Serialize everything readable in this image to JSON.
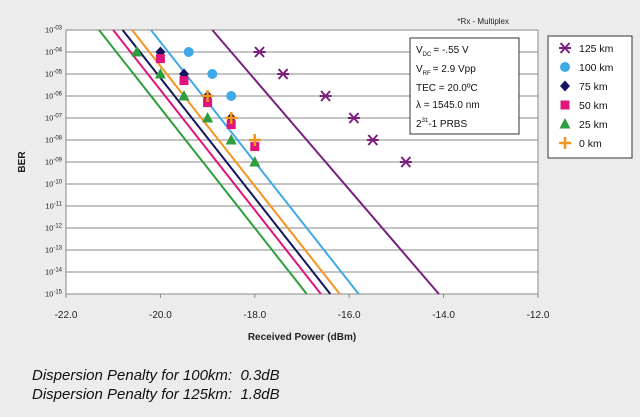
{
  "chart_data": {
    "type": "line",
    "corner_note": "*Rx - Multiplex",
    "xlabel": "Received Power (dBm)",
    "ylabel": "BER",
    "xlim": [
      -22.0,
      -12.0
    ],
    "x_ticks": [
      "-22.0",
      "-20.0",
      "-18.0",
      "-16.0",
      "-14.0",
      "-12.0"
    ],
    "y_scale": "log",
    "y_ticks": [
      "10^-03",
      "10^-04",
      "10^-05",
      "10^-06",
      "10^-07",
      "10^-08",
      "10^-09",
      "10^-10",
      "10^-11",
      "10^-12",
      "10^-13",
      "10^-14",
      "10^-15"
    ],
    "y_tick_base": "10",
    "y_tick_exps": [
      "-03",
      "-04",
      "-05",
      "-06",
      "-07",
      "-08",
      "-09",
      "-10",
      "-11",
      "-12",
      "-13",
      "-14",
      "-15"
    ],
    "grid": true,
    "legend_position": "right",
    "conditions": {
      "vdc": {
        "label": "V",
        "sub": "DC",
        "value": "= -.55 V"
      },
      "vrf": {
        "label": "V",
        "sub": "RF",
        "value": "= 2.9 Vpp"
      },
      "tec": "TEC = 20.0ºC",
      "lambda": "λ    = 1545.0 nm",
      "prbs": {
        "base": "2",
        "sup": "31",
        "rest": "-1  PRBS"
      }
    },
    "series": [
      {
        "name": "125 km",
        "marker": "star",
        "color": "#7b1f7f",
        "x": [
          -17.9,
          -17.4,
          -16.5,
          -15.9,
          -15.5,
          -14.8
        ],
        "y": [
          -4,
          -5,
          -6,
          -7,
          -8,
          -9
        ],
        "fit": {
          "x_start": -18.9,
          "y_start": -3,
          "x_end": -14.1,
          "y_end": -15
        }
      },
      {
        "name": "100 km",
        "marker": "circle",
        "color": "#3fa9e8",
        "x": [
          -19.4,
          -18.9,
          -18.5
        ],
        "y": [
          -4,
          -5,
          -6
        ],
        "fit": {
          "x_start": -20.2,
          "y_start": -3,
          "x_end": -15.8,
          "y_end": -15
        }
      },
      {
        "name": "75 km",
        "marker": "diamond",
        "color": "#12155e",
        "x": [
          -20.0,
          -19.5,
          -19.0,
          -18.5
        ],
        "y": [
          -4,
          -5,
          -6,
          -7
        ],
        "fit": {
          "x_start": -20.8,
          "y_start": -3,
          "x_end": -16.4,
          "y_end": -15
        }
      },
      {
        "name": "50 km",
        "marker": "square",
        "color": "#e0147a",
        "x": [
          -20.0,
          -19.5,
          -19.0,
          -18.5,
          -18.0
        ],
        "y": [
          -4.3,
          -5.3,
          -6.3,
          -7.3,
          -8.3
        ],
        "fit": {
          "x_start": -21.0,
          "y_start": -3,
          "x_end": -16.6,
          "y_end": -15
        }
      },
      {
        "name": "25 km",
        "marker": "triangle",
        "color": "#2c9e3c",
        "x": [
          -20.5,
          -20.0,
          -19.5,
          -19.0,
          -18.5,
          -18.0
        ],
        "y": [
          -4,
          -5,
          -6,
          -7,
          -8,
          -9
        ],
        "fit": {
          "x_start": -21.3,
          "y_start": -3,
          "x_end": -16.9,
          "y_end": -15
        }
      },
      {
        "name": "0 km",
        "marker": "plus",
        "color": "#f5941f",
        "x": [
          -19.0,
          -18.5,
          -18.0
        ],
        "y": [
          -6,
          -7,
          -8
        ],
        "fit": {
          "x_start": -20.6,
          "y_start": -3,
          "x_end": -16.2,
          "y_end": -15
        }
      }
    ]
  },
  "footnotes": [
    {
      "label": "Dispersion Penalty for 100km:",
      "value": "0.3dB"
    },
    {
      "label": "Dispersion Penalty for 125km:",
      "value": "1.8dB"
    }
  ]
}
